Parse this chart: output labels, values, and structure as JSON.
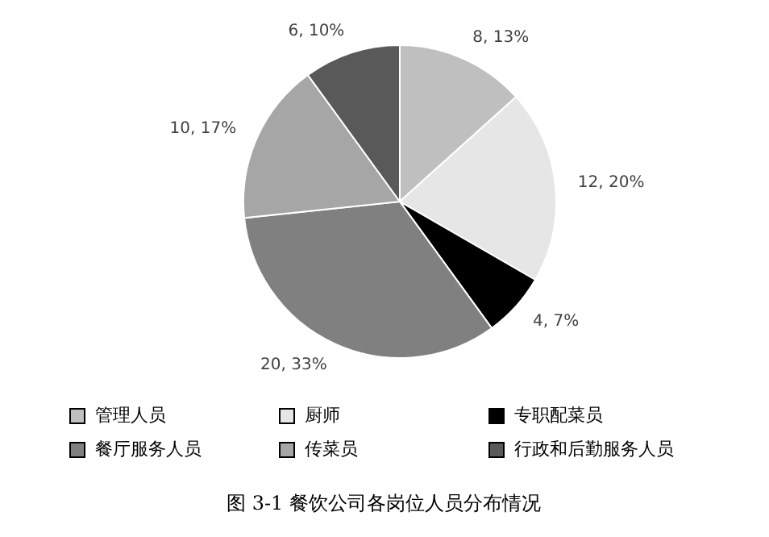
{
  "chart_data": {
    "type": "pie",
    "title": "图 3-1 餐饮公司各岗位人员分布情况",
    "categories": [
      "管理人员",
      "厨师",
      "专职配菜员",
      "餐厅服务人员",
      "传菜员",
      "行政和后勤服务人员"
    ],
    "values": [
      8,
      12,
      4,
      20,
      10,
      6
    ],
    "value_labels": [
      "8, 13%",
      "12, 20%",
      "4, 7%",
      "20, 33%",
      "10, 17%",
      "6, 10%"
    ],
    "colors": [
      "#bfbfbf",
      "#e6e6e6",
      "#000000",
      "#808080",
      "#a6a6a6",
      "#595959"
    ],
    "legend": "bottom"
  }
}
